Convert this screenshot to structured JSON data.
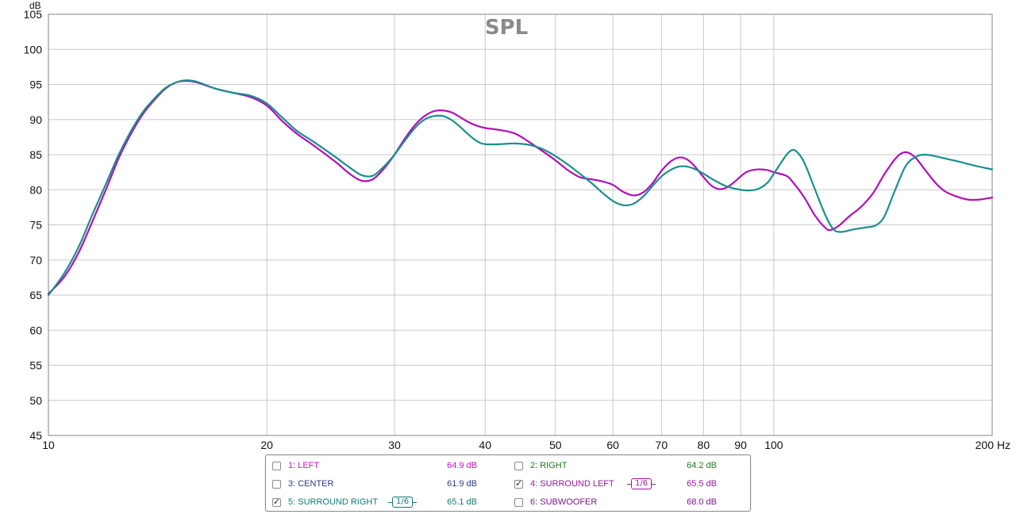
{
  "chart_data": {
    "type": "line",
    "title": "SPL",
    "ylabel": "dB",
    "xunit": "Hz",
    "xscale": "log",
    "xlim": [
      10,
      200
    ],
    "ylim": [
      45,
      105
    ],
    "grid": true,
    "xticks": [
      {
        "value": 10,
        "label": "10"
      },
      {
        "value": 20,
        "label": "20"
      },
      {
        "value": 30,
        "label": "30"
      },
      {
        "value": 40,
        "label": "40"
      },
      {
        "value": 50,
        "label": "50"
      },
      {
        "value": 60,
        "label": "60"
      },
      {
        "value": 70,
        "label": "70"
      },
      {
        "value": 80,
        "label": "80"
      },
      {
        "value": 90,
        "label": "90"
      },
      {
        "value": 100,
        "label": "100"
      },
      {
        "value": 200,
        "label": "200"
      }
    ],
    "yticks": [
      45,
      50,
      55,
      60,
      65,
      70,
      75,
      80,
      85,
      90,
      95,
      100,
      105
    ],
    "series": [
      {
        "name": "4: SURROUND LEFT",
        "color": "#b010b8",
        "points": [
          [
            10,
            65.2
          ],
          [
            10.5,
            67.5
          ],
          [
            11,
            71.0
          ],
          [
            11.5,
            75.5
          ],
          [
            12,
            80.0
          ],
          [
            12.5,
            84.5
          ],
          [
            13,
            88.0
          ],
          [
            13.5,
            90.8
          ],
          [
            14,
            92.8
          ],
          [
            14.5,
            94.4
          ],
          [
            15,
            95.3
          ],
          [
            15.5,
            95.5
          ],
          [
            16,
            95.3
          ],
          [
            17,
            94.4
          ],
          [
            18,
            93.8
          ],
          [
            19,
            93.2
          ],
          [
            20,
            92.0
          ],
          [
            21,
            89.8
          ],
          [
            22,
            88.0
          ],
          [
            23,
            86.6
          ],
          [
            24,
            85.2
          ],
          [
            25,
            83.8
          ],
          [
            26,
            82.3
          ],
          [
            27,
            81.3
          ],
          [
            28,
            81.5
          ],
          [
            29,
            83.0
          ],
          [
            30,
            85.0
          ],
          [
            31,
            87.3
          ],
          [
            32,
            89.2
          ],
          [
            33,
            90.5
          ],
          [
            34,
            91.2
          ],
          [
            35,
            91.3
          ],
          [
            36,
            91.0
          ],
          [
            37,
            90.3
          ],
          [
            38,
            89.6
          ],
          [
            39,
            89.1
          ],
          [
            40,
            88.8
          ],
          [
            42,
            88.5
          ],
          [
            44,
            88.0
          ],
          [
            46,
            86.8
          ],
          [
            48,
            85.5
          ],
          [
            50,
            84.2
          ],
          [
            52,
            82.8
          ],
          [
            54,
            81.8
          ],
          [
            56,
            81.5
          ],
          [
            58,
            81.2
          ],
          [
            60,
            80.7
          ],
          [
            62,
            79.7
          ],
          [
            64,
            79.2
          ],
          [
            66,
            79.6
          ],
          [
            68,
            80.9
          ],
          [
            70,
            82.7
          ],
          [
            72,
            84.0
          ],
          [
            74,
            84.6
          ],
          [
            76,
            84.3
          ],
          [
            78,
            83.2
          ],
          [
            80,
            81.8
          ],
          [
            82,
            80.6
          ],
          [
            84,
            80.1
          ],
          [
            86,
            80.3
          ],
          [
            88,
            81.0
          ],
          [
            90,
            81.9
          ],
          [
            92,
            82.6
          ],
          [
            95,
            82.9
          ],
          [
            98,
            82.8
          ],
          [
            100,
            82.5
          ],
          [
            104,
            82.0
          ],
          [
            106,
            81.2
          ],
          [
            110,
            79.0
          ],
          [
            114,
            76.3
          ],
          [
            118,
            74.5
          ],
          [
            120,
            74.3
          ],
          [
            123,
            74.9
          ],
          [
            127,
            76.2
          ],
          [
            132,
            77.6
          ],
          [
            137,
            79.5
          ],
          [
            142,
            82.2
          ],
          [
            147,
            84.4
          ],
          [
            150,
            85.2
          ],
          [
            153,
            85.3
          ],
          [
            157,
            84.5
          ],
          [
            162,
            82.7
          ],
          [
            167,
            81.0
          ],
          [
            172,
            79.8
          ],
          [
            178,
            79.1
          ],
          [
            185,
            78.6
          ],
          [
            192,
            78.6
          ],
          [
            200,
            78.9
          ]
        ]
      },
      {
        "name": "5: SURROUND RIGHT",
        "color": "#1a8f8c",
        "points": [
          [
            10,
            65.0
          ],
          [
            10.5,
            68.0
          ],
          [
            11,
            71.8
          ],
          [
            11.5,
            76.5
          ],
          [
            12,
            80.8
          ],
          [
            12.5,
            85.0
          ],
          [
            13,
            88.4
          ],
          [
            13.5,
            91.1
          ],
          [
            14,
            93.0
          ],
          [
            14.5,
            94.5
          ],
          [
            15,
            95.3
          ],
          [
            15.5,
            95.6
          ],
          [
            16,
            95.4
          ],
          [
            17,
            94.4
          ],
          [
            18,
            93.8
          ],
          [
            19,
            93.4
          ],
          [
            20,
            92.3
          ],
          [
            21,
            90.3
          ],
          [
            22,
            88.4
          ],
          [
            23,
            87.1
          ],
          [
            24,
            85.8
          ],
          [
            25,
            84.5
          ],
          [
            26,
            83.2
          ],
          [
            27,
            82.1
          ],
          [
            28,
            82.0
          ],
          [
            29,
            83.3
          ],
          [
            30,
            85.0
          ],
          [
            31,
            87.0
          ],
          [
            32,
            88.8
          ],
          [
            33,
            90.0
          ],
          [
            34,
            90.5
          ],
          [
            35,
            90.5
          ],
          [
            36,
            89.9
          ],
          [
            37,
            88.9
          ],
          [
            38,
            87.8
          ],
          [
            39,
            86.9
          ],
          [
            40,
            86.5
          ],
          [
            42,
            86.5
          ],
          [
            44,
            86.6
          ],
          [
            46,
            86.4
          ],
          [
            48,
            85.8
          ],
          [
            50,
            84.8
          ],
          [
            52,
            83.6
          ],
          [
            54,
            82.3
          ],
          [
            56,
            81.0
          ],
          [
            58,
            79.6
          ],
          [
            60,
            78.4
          ],
          [
            62,
            77.8
          ],
          [
            64,
            78.0
          ],
          [
            66,
            79.0
          ],
          [
            68,
            80.5
          ],
          [
            70,
            81.9
          ],
          [
            72,
            82.8
          ],
          [
            74,
            83.3
          ],
          [
            76,
            83.3
          ],
          [
            78,
            82.9
          ],
          [
            80,
            82.3
          ],
          [
            82,
            81.6
          ],
          [
            84,
            81.0
          ],
          [
            86,
            80.5
          ],
          [
            88,
            80.2
          ],
          [
            90,
            80.0
          ],
          [
            92,
            79.9
          ],
          [
            95,
            80.1
          ],
          [
            98,
            81.0
          ],
          [
            100,
            82.3
          ],
          [
            103,
            84.3
          ],
          [
            105,
            85.4
          ],
          [
            107,
            85.6
          ],
          [
            110,
            84.0
          ],
          [
            114,
            80.0
          ],
          [
            118,
            76.2
          ],
          [
            121,
            74.3
          ],
          [
            124,
            74.0
          ],
          [
            128,
            74.3
          ],
          [
            133,
            74.6
          ],
          [
            138,
            74.9
          ],
          [
            142,
            76.2
          ],
          [
            147,
            80.0
          ],
          [
            152,
            83.4
          ],
          [
            157,
            84.7
          ],
          [
            162,
            85.0
          ],
          [
            170,
            84.6
          ],
          [
            180,
            84.0
          ],
          [
            190,
            83.4
          ],
          [
            200,
            82.9
          ]
        ]
      }
    ]
  },
  "legend": {
    "items": [
      {
        "id": "ch1",
        "label": "1: LEFT",
        "value": "64.9 dB",
        "color": "#cc10cc",
        "checked": false
      },
      {
        "id": "ch2",
        "label": "2: RIGHT",
        "value": "64.2 dB",
        "color": "#1e7a22",
        "checked": false
      },
      {
        "id": "ch3",
        "label": "3: CENTER",
        "value": "61.9 dB",
        "color": "#2a3c8a",
        "checked": false
      },
      {
        "id": "ch4",
        "label": "4: SURROUND LEFT",
        "value": "65.5 dB",
        "color": "#9a189a",
        "checked": true,
        "smoothing": "1/6"
      },
      {
        "id": "ch5",
        "label": "5: SURROUND RIGHT",
        "value": "65.1 dB",
        "color": "#147a78",
        "checked": true,
        "smoothing": "1/6"
      },
      {
        "id": "ch6",
        "label": "6: SUBWOOFER",
        "value": "68.0 dB",
        "color": "#7a1a8a",
        "checked": false
      }
    ]
  }
}
